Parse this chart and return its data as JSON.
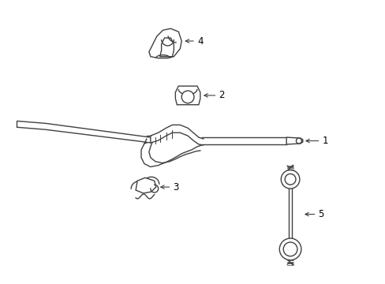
{
  "bg_color": "#ffffff",
  "line_color": "#404040",
  "label_color": "#000000",
  "figsize": [
    4.89,
    3.6
  ],
  "dpi": 100,
  "parts": [
    "1",
    "2",
    "3",
    "4",
    "5"
  ],
  "label1": "1",
  "label2": "2",
  "label3": "3",
  "label4": "4",
  "label5": "5"
}
